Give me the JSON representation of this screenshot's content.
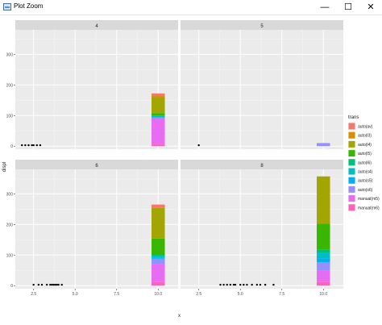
{
  "window": {
    "title": "Plot Zoom",
    "minimize_icon": "minimize-icon",
    "maximize_icon": "maximize-icon",
    "close_icon": "close-icon",
    "minimize_glyph": "—",
    "maximize_glyph": "☐",
    "close_glyph": "✕"
  },
  "chart_data": {
    "type": "scatter+stacked-bar (faceted)",
    "xlabel": "x",
    "ylabel": "displ",
    "x_ticks": [
      "2.5",
      "5.0",
      "7.5",
      "10.0"
    ],
    "y_ticks": [
      "0",
      "100",
      "200",
      "300"
    ],
    "xlim": [
      1.4,
      11.2
    ],
    "ylim": [
      -10,
      380
    ],
    "legend": {
      "title": "trans",
      "position": "right",
      "entries": [
        {
          "label": "auto(av)",
          "color": "#F8766D"
        },
        {
          "label": "auto(l3)",
          "color": "#D89000"
        },
        {
          "label": "auto(l4)",
          "color": "#A3A500"
        },
        {
          "label": "auto(l5)",
          "color": "#39B600"
        },
        {
          "label": "auto(l6)",
          "color": "#00BF7D"
        },
        {
          "label": "auto(s4)",
          "color": "#00BFC4"
        },
        {
          "label": "auto(s5)",
          "color": "#00B0F6"
        },
        {
          "label": "auto(s6)",
          "color": "#9590FF"
        },
        {
          "label": "manual(m5)",
          "color": "#E76BF3"
        },
        {
          "label": "manual(m6)",
          "color": "#FF62BC"
        }
      ]
    },
    "facets": [
      {
        "label": "4",
        "points_x": [
          1.8,
          2.0,
          2.2,
          2.4,
          2.5,
          2.7,
          2.9
        ],
        "bar": {
          "x": 10.0,
          "segments": [
            {
              "trans": "manual(m6)",
              "value": 8
            },
            {
              "trans": "manual(m5)",
              "value": 82
            },
            {
              "trans": "auto(s6)",
              "value": 3
            },
            {
              "trans": "auto(s5)",
              "value": 2
            },
            {
              "trans": "auto(s4)",
              "value": 5
            },
            {
              "trans": "auto(l5)",
              "value": 8
            },
            {
              "trans": "auto(l4)",
              "value": 52
            },
            {
              "trans": "auto(l3)",
              "value": 5
            },
            {
              "trans": "auto(av)",
              "value": 7
            }
          ]
        }
      },
      {
        "label": "5",
        "points_x": [
          2.5
        ],
        "bar": {
          "x": 10.0,
          "segments": [
            {
              "trans": "auto(s6)",
              "value": 10
            }
          ]
        }
      },
      {
        "label": "6",
        "points_x": [
          2.5,
          2.8,
          3.0,
          3.3,
          3.5,
          3.6,
          3.7,
          3.8,
          3.9,
          4.0,
          4.2
        ],
        "bar": {
          "x": 10.0,
          "segments": [
            {
              "trans": "manual(m6)",
              "value": 12
            },
            {
              "trans": "manual(m5)",
              "value": 58
            },
            {
              "trans": "auto(s6)",
              "value": 18
            },
            {
              "trans": "auto(s5)",
              "value": 3
            },
            {
              "trans": "auto(s4)",
              "value": 5
            },
            {
              "trans": "auto(l6)",
              "value": 6
            },
            {
              "trans": "auto(l5)",
              "value": 52
            },
            {
              "trans": "auto(l4)",
              "value": 100
            },
            {
              "trans": "auto(l3)",
              "value": 2
            },
            {
              "trans": "auto(av)",
              "value": 9
            }
          ]
        }
      },
      {
        "label": "8",
        "points_x": [
          3.8,
          4.0,
          4.2,
          4.4,
          4.6,
          4.7,
          5.0,
          5.2,
          5.4,
          5.7,
          6.0,
          6.2,
          6.5,
          7.0
        ],
        "bar": {
          "x": 10.0,
          "segments": [
            {
              "trans": "manual(m6)",
              "value": 12
            },
            {
              "trans": "manual(m5)",
              "value": 37
            },
            {
              "trans": "auto(s6)",
              "value": 28
            },
            {
              "trans": "auto(s5)",
              "value": 12
            },
            {
              "trans": "auto(s4)",
              "value": 18
            },
            {
              "trans": "auto(l6)",
              "value": 10
            },
            {
              "trans": "auto(l5)",
              "value": 85
            },
            {
              "trans": "auto(l4)",
              "value": 155
            }
          ]
        }
      }
    ]
  }
}
